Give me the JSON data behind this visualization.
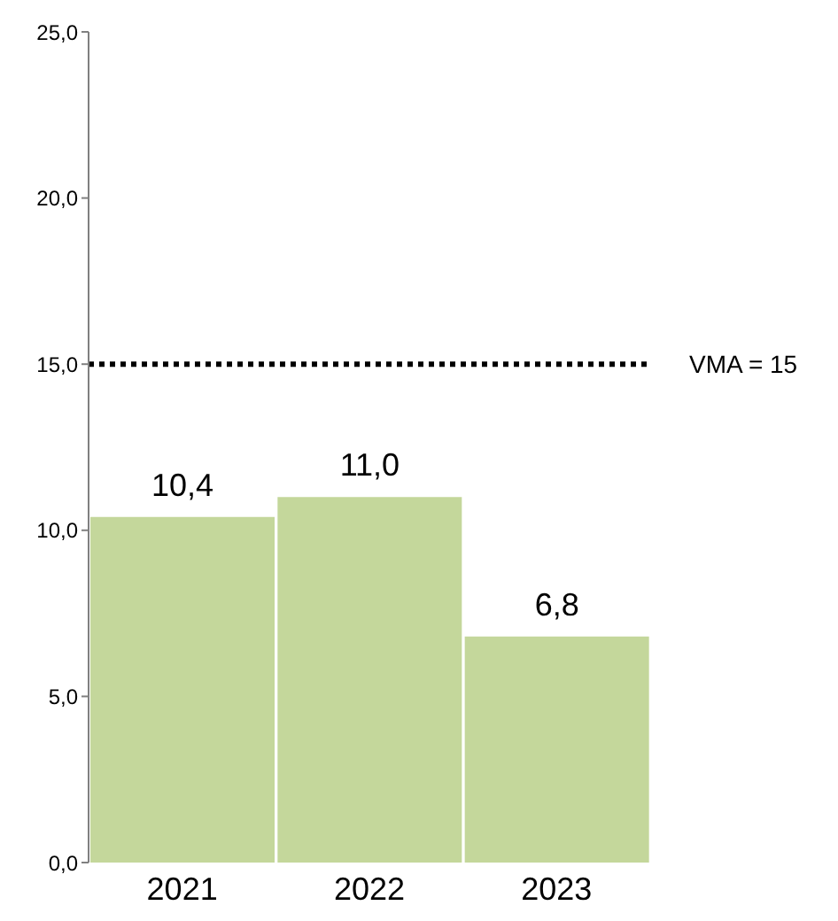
{
  "chart_data": {
    "type": "bar",
    "categories": [
      "2021",
      "2022",
      "2023"
    ],
    "values": [
      10.4,
      11.0,
      6.8
    ],
    "color": "#c4d79b",
    "value_labels": [
      "10,4",
      "11,0",
      "6,8"
    ],
    "ylim": [
      0,
      25
    ],
    "yticks": [
      {
        "value": 0,
        "label": "0,0"
      },
      {
        "value": 5,
        "label": "5,0"
      },
      {
        "value": 10,
        "label": "10,0"
      },
      {
        "value": 15,
        "label": "15,0"
      },
      {
        "value": 20,
        "label": "20,0"
      },
      {
        "value": 25,
        "label": "25,0"
      }
    ],
    "ref_lines": [
      {
        "axis": "y",
        "value": 15,
        "label": "VMA = 15",
        "color": "#000000",
        "line_style": "dotted"
      }
    ],
    "grid": false,
    "legend": false
  }
}
